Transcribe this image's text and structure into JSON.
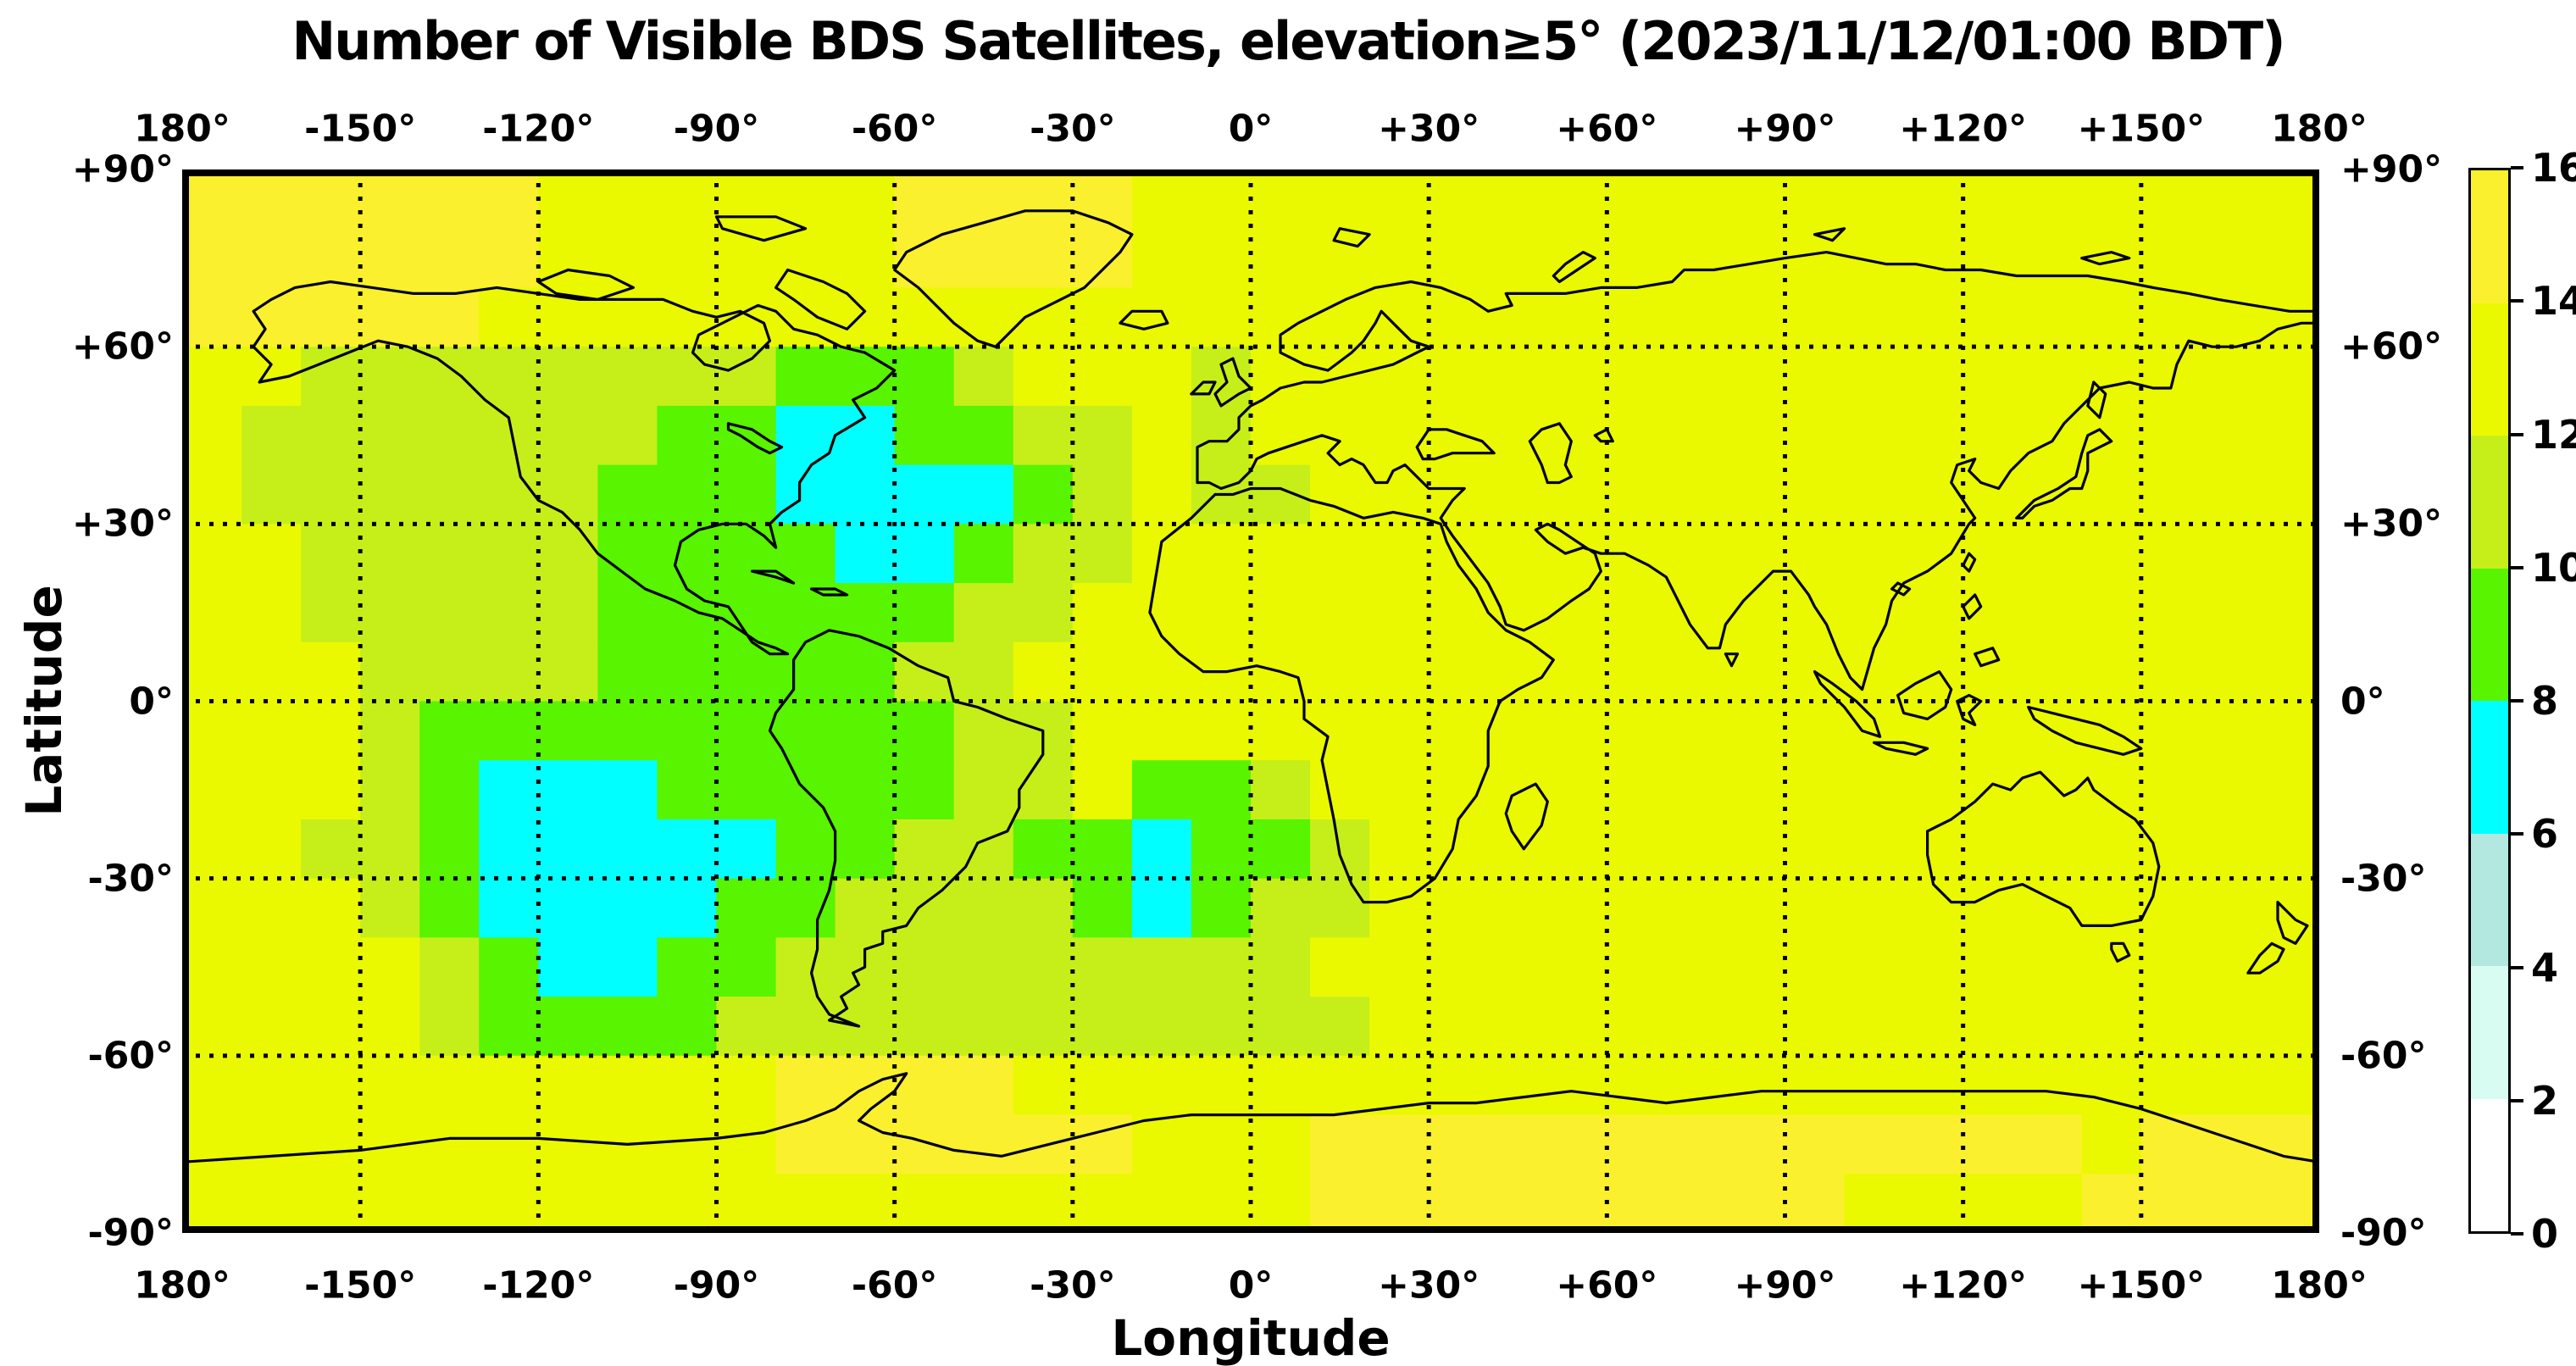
{
  "title": "Number of Visible BDS Satellites, elevation≥5° (2023/11/12/01:00 BDT)",
  "axes": {
    "xlabel": "Longitude",
    "ylabel": "Latitude",
    "lon_ticks": [
      {
        "value": -180,
        "label": "180°"
      },
      {
        "value": -150,
        "label": "-150°"
      },
      {
        "value": -120,
        "label": "-120°"
      },
      {
        "value": -90,
        "label": "-90°"
      },
      {
        "value": -60,
        "label": "-60°"
      },
      {
        "value": -30,
        "label": "-30°"
      },
      {
        "value": 0,
        "label": "0°"
      },
      {
        "value": 30,
        "label": "+30°"
      },
      {
        "value": 60,
        "label": "+60°"
      },
      {
        "value": 90,
        "label": "+90°"
      },
      {
        "value": 120,
        "label": "+120°"
      },
      {
        "value": 150,
        "label": "+150°"
      },
      {
        "value": 180,
        "label": "180°"
      }
    ],
    "lat_ticks": [
      {
        "value": 90,
        "label": "+90°"
      },
      {
        "value": 60,
        "label": "+60°"
      },
      {
        "value": 30,
        "label": "+30°"
      },
      {
        "value": 0,
        "label": "0°"
      },
      {
        "value": -30,
        "label": "-30°"
      },
      {
        "value": -60,
        "label": "-60°"
      },
      {
        "value": -90,
        "label": "-90°"
      }
    ],
    "grid_interval_deg": 30,
    "grid_style": "dotted"
  },
  "colorbar": {
    "ticks": [
      0,
      2,
      4,
      6,
      8,
      10,
      12,
      14,
      16
    ],
    "bands": [
      {
        "range": [
          0,
          2
        ],
        "color": "#ffffff"
      },
      {
        "range": [
          2,
          4
        ],
        "color": "#d9fcf2"
      },
      {
        "range": [
          4,
          6
        ],
        "color": "#b2e8e0"
      },
      {
        "range": [
          6,
          8
        ],
        "color": "#00ffff"
      },
      {
        "range": [
          8,
          10
        ],
        "color": "#58f400"
      },
      {
        "range": [
          10,
          12
        ],
        "color": "#c6ef1a"
      },
      {
        "range": [
          12,
          14
        ],
        "color": "#ebf900"
      },
      {
        "range": [
          14,
          16
        ],
        "color": "#faf02e"
      }
    ]
  },
  "chart_data": {
    "type": "heatmap",
    "title": "Number of Visible BDS Satellites, elevation≥5° (2023/11/12/01:00 BDT)",
    "xlabel": "Longitude",
    "ylabel": "Latitude",
    "xlim": [
      -180,
      180
    ],
    "ylim": [
      -90,
      90
    ],
    "cell_deg": 10,
    "grid_origin": "top-left lat +90, lon -180",
    "legend_position": "right-colorbar",
    "value_range": [
      0,
      16
    ],
    "grid": [
      [
        15,
        15,
        15,
        15,
        15,
        15,
        13,
        13,
        13,
        13,
        13,
        13,
        15,
        15,
        15,
        15,
        13,
        13,
        13,
        13,
        13,
        13,
        13,
        13,
        13,
        13,
        13,
        13,
        13,
        13,
        13,
        13,
        13,
        13,
        13,
        13
      ],
      [
        15,
        15,
        15,
        15,
        15,
        15,
        13,
        13,
        13,
        13,
        13,
        13,
        15,
        15,
        15,
        15,
        13,
        13,
        13,
        13,
        13,
        13,
        13,
        13,
        13,
        13,
        13,
        13,
        13,
        13,
        13,
        13,
        13,
        13,
        13,
        13
      ],
      [
        15,
        15,
        15,
        15,
        15,
        13,
        13,
        13,
        13,
        13,
        13,
        13,
        13,
        13,
        13,
        13,
        13,
        13,
        13,
        13,
        13,
        13,
        13,
        13,
        13,
        13,
        13,
        13,
        13,
        13,
        13,
        13,
        13,
        13,
        13,
        13
      ],
      [
        13,
        13,
        11,
        11,
        11,
        11,
        11,
        11,
        11,
        11,
        9,
        9,
        9,
        11,
        13,
        13,
        13,
        11,
        13,
        13,
        13,
        13,
        13,
        13,
        13,
        13,
        13,
        13,
        13,
        13,
        13,
        13,
        13,
        13,
        13,
        13
      ],
      [
        13,
        11,
        11,
        11,
        11,
        11,
        11,
        11,
        9,
        9,
        7,
        7,
        9,
        9,
        11,
        11,
        13,
        11,
        13,
        13,
        13,
        13,
        13,
        13,
        13,
        13,
        13,
        13,
        13,
        13,
        13,
        13,
        13,
        13,
        13,
        13
      ],
      [
        13,
        11,
        11,
        11,
        11,
        11,
        11,
        9,
        9,
        9,
        7,
        7,
        7,
        7,
        9,
        11,
        13,
        11,
        11,
        13,
        13,
        13,
        13,
        13,
        13,
        13,
        13,
        13,
        13,
        13,
        13,
        13,
        13,
        13,
        13,
        13
      ],
      [
        13,
        13,
        11,
        11,
        11,
        11,
        11,
        9,
        9,
        9,
        9,
        7,
        7,
        9,
        11,
        11,
        13,
        13,
        13,
        13,
        13,
        13,
        13,
        13,
        13,
        13,
        13,
        13,
        13,
        13,
        13,
        13,
        13,
        13,
        13,
        13
      ],
      [
        13,
        13,
        11,
        11,
        11,
        11,
        11,
        9,
        9,
        9,
        9,
        9,
        9,
        11,
        11,
        13,
        13,
        13,
        13,
        13,
        13,
        13,
        13,
        13,
        13,
        13,
        13,
        13,
        13,
        13,
        13,
        13,
        13,
        13,
        13,
        13
      ],
      [
        13,
        13,
        13,
        11,
        11,
        11,
        11,
        9,
        9,
        9,
        9,
        9,
        11,
        11,
        13,
        13,
        13,
        13,
        13,
        13,
        13,
        13,
        13,
        13,
        13,
        13,
        13,
        13,
        13,
        13,
        13,
        13,
        13,
        13,
        13,
        13
      ],
      [
        13,
        13,
        13,
        11,
        9,
        9,
        9,
        9,
        9,
        9,
        9,
        9,
        9,
        11,
        11,
        13,
        13,
        13,
        13,
        13,
        13,
        13,
        13,
        13,
        13,
        13,
        13,
        13,
        13,
        13,
        13,
        13,
        13,
        13,
        13,
        13
      ],
      [
        13,
        13,
        13,
        11,
        9,
        7,
        7,
        7,
        9,
        9,
        9,
        9,
        9,
        11,
        11,
        13,
        9,
        9,
        11,
        13,
        13,
        13,
        13,
        13,
        13,
        13,
        13,
        13,
        13,
        13,
        13,
        13,
        13,
        13,
        13,
        13
      ],
      [
        13,
        13,
        11,
        11,
        9,
        7,
        7,
        7,
        7,
        7,
        9,
        9,
        11,
        11,
        9,
        9,
        7,
        9,
        9,
        11,
        13,
        13,
        13,
        13,
        13,
        13,
        13,
        13,
        13,
        13,
        13,
        13,
        13,
        13,
        13,
        13
      ],
      [
        13,
        13,
        13,
        11,
        9,
        7,
        7,
        7,
        7,
        9,
        9,
        11,
        11,
        11,
        11,
        9,
        7,
        9,
        11,
        11,
        13,
        13,
        13,
        13,
        13,
        13,
        13,
        13,
        13,
        13,
        13,
        13,
        13,
        13,
        13,
        13
      ],
      [
        13,
        13,
        13,
        13,
        11,
        9,
        7,
        7,
        9,
        9,
        11,
        11,
        11,
        11,
        11,
        11,
        11,
        11,
        11,
        13,
        13,
        13,
        13,
        13,
        13,
        13,
        13,
        13,
        13,
        13,
        13,
        13,
        13,
        13,
        13,
        13
      ],
      [
        13,
        13,
        13,
        13,
        11,
        9,
        9,
        9,
        9,
        11,
        11,
        11,
        11,
        11,
        11,
        11,
        11,
        11,
        11,
        11,
        13,
        13,
        13,
        13,
        13,
        13,
        13,
        13,
        13,
        13,
        13,
        13,
        13,
        13,
        13,
        13
      ],
      [
        13,
        13,
        13,
        13,
        13,
        13,
        13,
        13,
        13,
        13,
        15,
        15,
        15,
        15,
        13,
        13,
        13,
        13,
        13,
        13,
        13,
        13,
        13,
        13,
        13,
        13,
        13,
        13,
        13,
        13,
        13,
        13,
        13,
        13,
        13,
        13
      ],
      [
        13,
        13,
        13,
        13,
        13,
        13,
        13,
        13,
        13,
        13,
        15,
        15,
        15,
        15,
        15,
        15,
        13,
        13,
        13,
        15,
        15,
        15,
        15,
        15,
        15,
        15,
        15,
        15,
        15,
        15,
        15,
        15,
        13,
        15,
        15,
        15
      ],
      [
        13,
        13,
        13,
        13,
        13,
        13,
        13,
        13,
        13,
        13,
        13,
        13,
        13,
        13,
        13,
        13,
        13,
        13,
        13,
        15,
        15,
        15,
        15,
        15,
        15,
        15,
        15,
        15,
        13,
        13,
        13,
        13,
        15,
        15,
        15,
        15
      ]
    ]
  }
}
